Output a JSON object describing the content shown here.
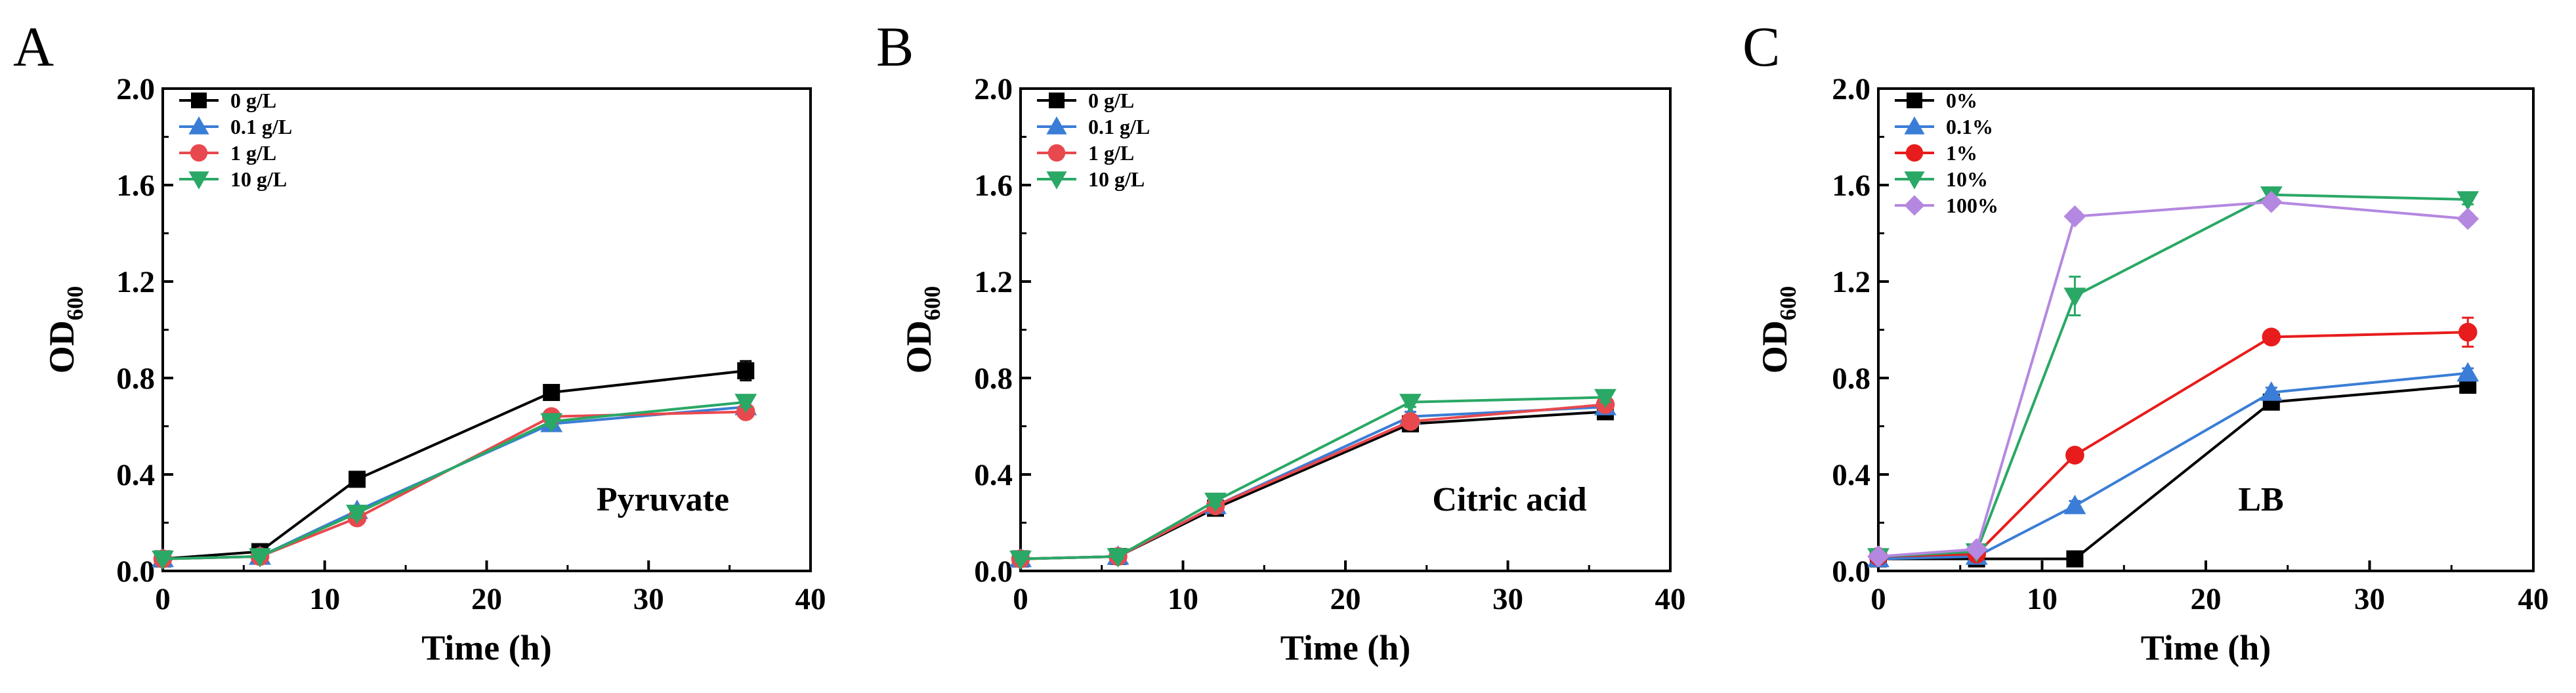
{
  "chart_data": [
    {
      "type": "line",
      "panel_label": "A",
      "annotation": "Pyruvate",
      "xlabel": "Time (h)",
      "ylabel": "OD",
      "ylabel_sub": "600",
      "xlim": [
        0,
        40
      ],
      "ylim": [
        0,
        2.0
      ],
      "xticks": [
        0,
        10,
        20,
        30,
        40
      ],
      "yticks": [
        0.0,
        0.4,
        0.8,
        1.2,
        1.6,
        2.0
      ],
      "ytick_labels": [
        "0.0",
        "0.4",
        "0.8",
        "1.2",
        "1.6",
        "2.0"
      ],
      "grid": false,
      "legend_position": "top-left",
      "x": [
        0,
        6,
        12,
        24,
        36
      ],
      "series": [
        {
          "name": "0 g/L",
          "color": "#000000",
          "marker": "square",
          "values": [
            0.05,
            0.08,
            0.38,
            0.74,
            0.83
          ],
          "errors": [
            0.01,
            0.01,
            0.03,
            0.02,
            0.04
          ]
        },
        {
          "name": "0.1 g/L",
          "color": "#3a7dd6",
          "marker": "triangle-up",
          "values": [
            0.05,
            0.06,
            0.25,
            0.61,
            0.68
          ],
          "errors": [
            0.01,
            0.01,
            0.02,
            0.02,
            0.02
          ]
        },
        {
          "name": "1 g/L",
          "color": "#e8494e",
          "marker": "circle",
          "values": [
            0.05,
            0.06,
            0.22,
            0.64,
            0.66
          ],
          "errors": [
            0.01,
            0.01,
            0.02,
            0.02,
            0.02
          ]
        },
        {
          "name": "10 g/L",
          "color": "#2aa866",
          "marker": "triangle-down",
          "values": [
            0.05,
            0.06,
            0.24,
            0.62,
            0.7
          ],
          "errors": [
            0.01,
            0.01,
            0.02,
            0.02,
            0.02
          ]
        }
      ]
    },
    {
      "type": "line",
      "panel_label": "B",
      "annotation": "Citric acid",
      "xlabel": "Time (h)",
      "ylabel": "OD",
      "ylabel_sub": "600",
      "xlim": [
        0,
        40
      ],
      "ylim": [
        0,
        2.0
      ],
      "xticks": [
        0,
        10,
        20,
        30,
        40
      ],
      "yticks": [
        0.0,
        0.4,
        0.8,
        1.2,
        1.6,
        2.0
      ],
      "ytick_labels": [
        "0.0",
        "0.4",
        "0.8",
        "1.2",
        "1.6",
        "2.0"
      ],
      "grid": false,
      "legend_position": "top-left",
      "x": [
        0,
        6,
        12,
        24,
        36
      ],
      "series": [
        {
          "name": "0 g/L",
          "color": "#000000",
          "marker": "square",
          "values": [
            0.05,
            0.06,
            0.26,
            0.61,
            0.66
          ],
          "errors": [
            0.01,
            0.01,
            0.02,
            0.02,
            0.02
          ]
        },
        {
          "name": "0.1 g/L",
          "color": "#3a7dd6",
          "marker": "triangle-up",
          "values": [
            0.05,
            0.06,
            0.27,
            0.64,
            0.68
          ],
          "errors": [
            0.01,
            0.01,
            0.02,
            0.02,
            0.02
          ]
        },
        {
          "name": "1 g/L",
          "color": "#e8494e",
          "marker": "circle",
          "values": [
            0.05,
            0.06,
            0.27,
            0.62,
            0.69
          ],
          "errors": [
            0.01,
            0.01,
            0.02,
            0.02,
            0.02
          ]
        },
        {
          "name": "10 g/L",
          "color": "#2aa866",
          "marker": "triangle-down",
          "values": [
            0.05,
            0.06,
            0.29,
            0.7,
            0.72
          ],
          "errors": [
            0.01,
            0.01,
            0.02,
            0.02,
            0.02
          ]
        }
      ]
    },
    {
      "type": "line",
      "panel_label": "C",
      "annotation": "LB",
      "xlabel": "Time (h)",
      "ylabel": "OD",
      "ylabel_sub": "600",
      "xlim": [
        0,
        40
      ],
      "ylim": [
        0,
        2.0
      ],
      "xticks": [
        0,
        10,
        20,
        30,
        40
      ],
      "yticks": [
        0.0,
        0.4,
        0.8,
        1.2,
        1.6,
        2.0
      ],
      "ytick_labels": [
        "0.0",
        "0.4",
        "0.8",
        "1.2",
        "1.6",
        "2.0"
      ],
      "grid": false,
      "legend_position": "top-left",
      "x": [
        0,
        6,
        12,
        24,
        36
      ],
      "series": [
        {
          "name": "0%",
          "color": "#000000",
          "marker": "square",
          "values": [
            0.05,
            0.05,
            0.05,
            0.7,
            0.77
          ],
          "errors": [
            0.01,
            0.01,
            0.01,
            0.02,
            0.02
          ]
        },
        {
          "name": "0.1%",
          "color": "#3a7dd6",
          "marker": "triangle-up",
          "values": [
            0.05,
            0.06,
            0.27,
            0.74,
            0.82
          ],
          "errors": [
            0.01,
            0.01,
            0.02,
            0.02,
            0.02
          ]
        },
        {
          "name": "1%",
          "color": "#e81c1c",
          "marker": "circle",
          "values": [
            0.06,
            0.07,
            0.48,
            0.97,
            0.99
          ],
          "errors": [
            0.01,
            0.01,
            0.02,
            0.02,
            0.06
          ]
        },
        {
          "name": "10%",
          "color": "#2aa866",
          "marker": "triangle-down",
          "values": [
            0.06,
            0.08,
            1.14,
            1.56,
            1.54
          ],
          "errors": [
            0.01,
            0.01,
            0.08,
            0.02,
            0.02
          ]
        },
        {
          "name": "100%",
          "color": "#b488e0",
          "marker": "diamond",
          "values": [
            0.06,
            0.09,
            1.47,
            1.53,
            1.46
          ],
          "errors": [
            0.01,
            0.01,
            0.02,
            0.02,
            0.02
          ]
        }
      ]
    }
  ]
}
